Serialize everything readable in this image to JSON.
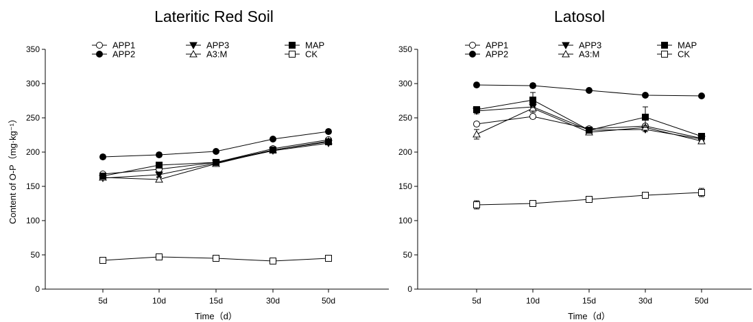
{
  "chart_data": [
    {
      "type": "line",
      "title": "Lateritic  Red Soil",
      "xlabel": "Time（d）",
      "ylabel": "Content of O-P（mg·kg⁻¹）",
      "categories": [
        "5d",
        "10d",
        "15d",
        "30d",
        "50d"
      ],
      "ylim": [
        0,
        350
      ],
      "yticks": [
        0,
        50,
        100,
        150,
        200,
        250,
        300,
        350
      ],
      "legend_placement": "top",
      "series": [
        {
          "name": "APP1",
          "marker": "circle-open",
          "values": [
            168,
            175,
            185,
            205,
            218
          ],
          "err": [
            2,
            3,
            2,
            3,
            3
          ]
        },
        {
          "name": "APP2",
          "marker": "circle-filled",
          "values": [
            193,
            196,
            201,
            219,
            230
          ],
          "err": [
            3,
            3,
            2,
            2,
            3
          ]
        },
        {
          "name": "APP3",
          "marker": "triangle-down-filled",
          "values": [
            162,
            167,
            184,
            202,
            213
          ],
          "err": [
            3,
            3,
            2,
            2,
            2
          ]
        },
        {
          "name": "A3:M",
          "marker": "triangle-up-open",
          "values": [
            163,
            160,
            183,
            203,
            216
          ],
          "err": [
            2,
            3,
            2,
            2,
            2
          ]
        },
        {
          "name": "MAP",
          "marker": "square-filled",
          "values": [
            165,
            181,
            185,
            203,
            215
          ],
          "err": [
            2,
            3,
            2,
            2,
            2
          ]
        },
        {
          "name": "CK",
          "marker": "square-open",
          "values": [
            42,
            47,
            45,
            41,
            45
          ],
          "err": [
            2,
            2,
            2,
            2,
            2
          ]
        }
      ]
    },
    {
      "type": "line",
      "title": "Latosol",
      "xlabel": "Time（d）",
      "ylabel": "",
      "categories": [
        "5d",
        "10d",
        "15d",
        "30d",
        "50d"
      ],
      "ylim": [
        0,
        350
      ],
      "yticks": [
        0,
        50,
        100,
        150,
        200,
        250,
        300,
        350
      ],
      "legend_placement": "top",
      "series": [
        {
          "name": "APP1",
          "marker": "circle-open",
          "values": [
            241,
            252,
            234,
            238,
            220
          ],
          "err": [
            3,
            3,
            3,
            3,
            3
          ]
        },
        {
          "name": "APP2",
          "marker": "circle-filled",
          "values": [
            298,
            297,
            290,
            283,
            282
          ],
          "err": [
            3,
            3,
            2,
            2,
            2
          ]
        },
        {
          "name": "APP3",
          "marker": "triangle-down-filled",
          "values": [
            260,
            266,
            232,
            233,
            219
          ],
          "err": [
            4,
            5,
            3,
            3,
            3
          ]
        },
        {
          "name": "A3:M",
          "marker": "triangle-up-open",
          "values": [
            226,
            264,
            229,
            236,
            216
          ],
          "err": [
            7,
            6,
            3,
            3,
            3
          ]
        },
        {
          "name": "MAP",
          "marker": "square-filled",
          "values": [
            262,
            276,
            232,
            251,
            223
          ],
          "err": [
            4,
            11,
            3,
            15,
            3
          ]
        },
        {
          "name": "CK",
          "marker": "square-open",
          "values": [
            123,
            125,
            131,
            137,
            141
          ],
          "err": [
            6,
            3,
            3,
            3,
            6
          ]
        }
      ]
    }
  ],
  "legend_layout": [
    [
      "APP1",
      "APP3",
      "MAP"
    ],
    [
      "APP2",
      "A3:M",
      "CK"
    ]
  ]
}
